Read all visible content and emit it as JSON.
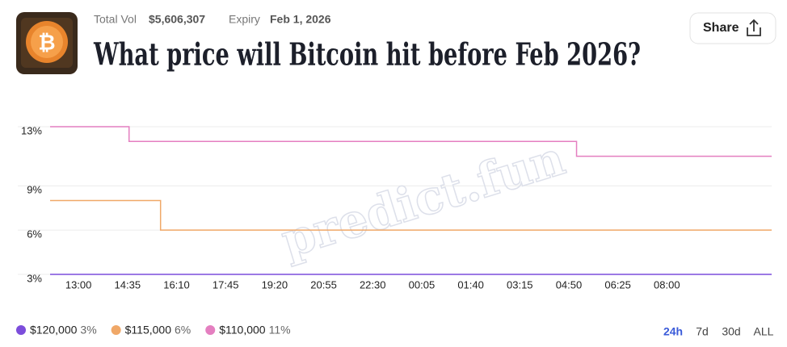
{
  "header": {
    "total_vol_label": "Total Vol",
    "total_vol": "$5,606,307",
    "expiry_label": "Expiry",
    "expiry": "Feb 1, 2026",
    "title": "What price will Bitcoin hit before Feb 2026?",
    "share": "Share"
  },
  "chart_data": {
    "type": "line",
    "step": true,
    "watermark": "predict.fun",
    "x": [
      "12:05",
      "14:38",
      "15:39",
      "05:05",
      "11:23"
    ],
    "xlim": [
      "12:05",
      "11:23"
    ],
    "xticks": [
      "13:00",
      "14:35",
      "16:10",
      "17:45",
      "19:20",
      "20:55",
      "22:30",
      "00:05",
      "01:40",
      "03:15",
      "04:50",
      "06:25",
      "08:00"
    ],
    "ylim": [
      3,
      13
    ],
    "yticks": [
      {
        "value": 3,
        "label": "3%"
      },
      {
        "value": 6,
        "label": "6%"
      },
      {
        "value": 9,
        "label": "9%"
      },
      {
        "value": 13,
        "label": "13%"
      }
    ],
    "grid": true,
    "series": [
      {
        "name": "$120,000",
        "color": "#7c4ddb",
        "values": [
          3,
          3,
          3,
          3,
          3
        ],
        "legend_value": "3%"
      },
      {
        "name": "$115,000",
        "color": "#f0a868",
        "values": [
          8,
          8,
          6,
          6,
          6
        ],
        "legend_value": "6%"
      },
      {
        "name": "$110,000",
        "color": "#e47fc0",
        "values": [
          13,
          12,
          12,
          11,
          11
        ],
        "legend_value": "11%"
      }
    ],
    "ranges": [
      "24h",
      "7d",
      "30d",
      "ALL"
    ],
    "active_range": 0
  }
}
